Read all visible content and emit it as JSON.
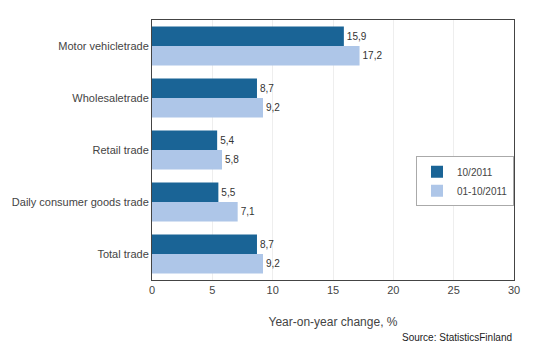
{
  "chart_data": {
    "type": "bar",
    "orientation": "horizontal",
    "categories": [
      "Motor vehicletrade",
      "Wholesaletrade",
      "Retail trade",
      "Daily consumer goods trade",
      "Total trade"
    ],
    "series": [
      {
        "name": "10/2011",
        "color": "#1a6496",
        "values": [
          15.9,
          8.7,
          5.4,
          5.5,
          8.7
        ],
        "value_labels": [
          "15,9",
          "8,7",
          "5,4",
          "5,5",
          "8,7"
        ]
      },
      {
        "name": "01-10/2011",
        "color": "#aec6e8",
        "values": [
          17.2,
          9.2,
          5.8,
          7.1,
          9.2
        ],
        "value_labels": [
          "17,2",
          "9,2",
          "5,8",
          "7,1",
          "9,2"
        ]
      }
    ],
    "xlabel": "Year-on-year change, %",
    "xlim": [
      0,
      30
    ],
    "xticks": [
      0,
      5,
      10,
      15,
      20,
      25,
      30
    ],
    "grid": true,
    "legend": "right",
    "data_labels": true,
    "annotations": [
      "Source: StatisticsFinland"
    ]
  }
}
